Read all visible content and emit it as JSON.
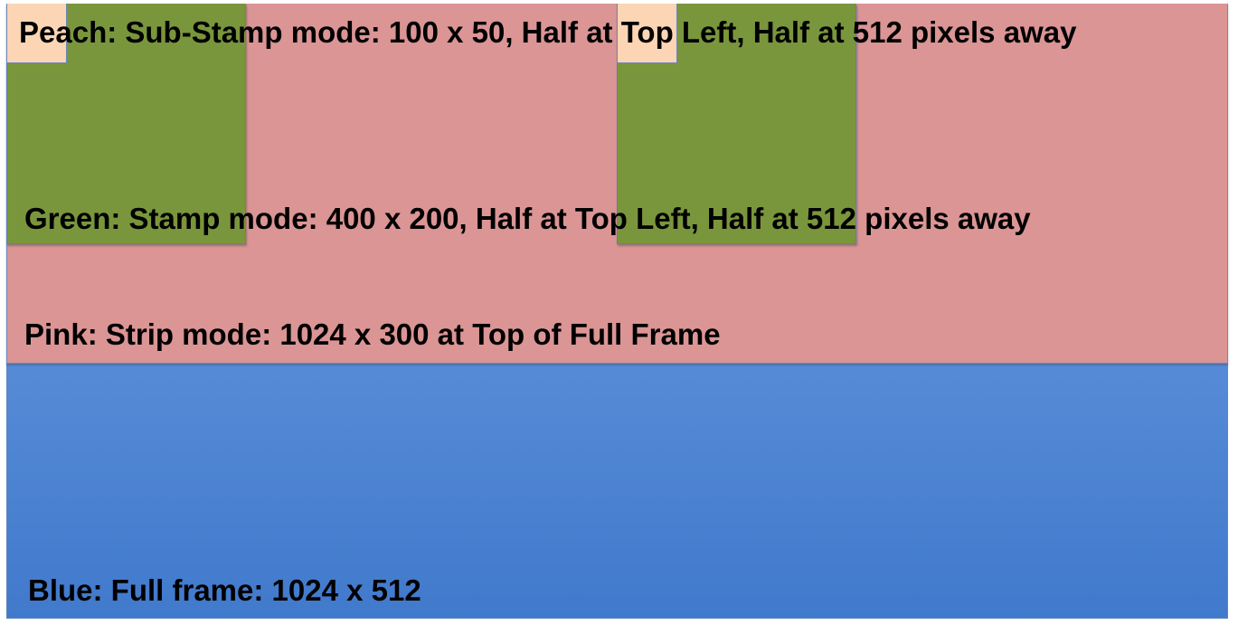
{
  "diagram": {
    "regions": [
      {
        "color_name": "Blue",
        "fill": "#5a8fd8",
        "label": "Blue:  Full frame: 1024 x 512"
      },
      {
        "color_name": "Pink",
        "fill": "#da9594",
        "label": "Pink:  Strip mode: 1024 x 300 at Top of Full Frame"
      },
      {
        "color_name": "Green",
        "fill": "#7a963c",
        "label": "Green:  Stamp mode: 400 x 200, Half at Top Left, Half at 512 pixels away"
      },
      {
        "color_name": "Peach",
        "fill": "#fbd5b4",
        "label": "Peach:  Sub-Stamp mode: 100 x 50, Half at Top Left, Half at 512 pixels away"
      }
    ]
  }
}
